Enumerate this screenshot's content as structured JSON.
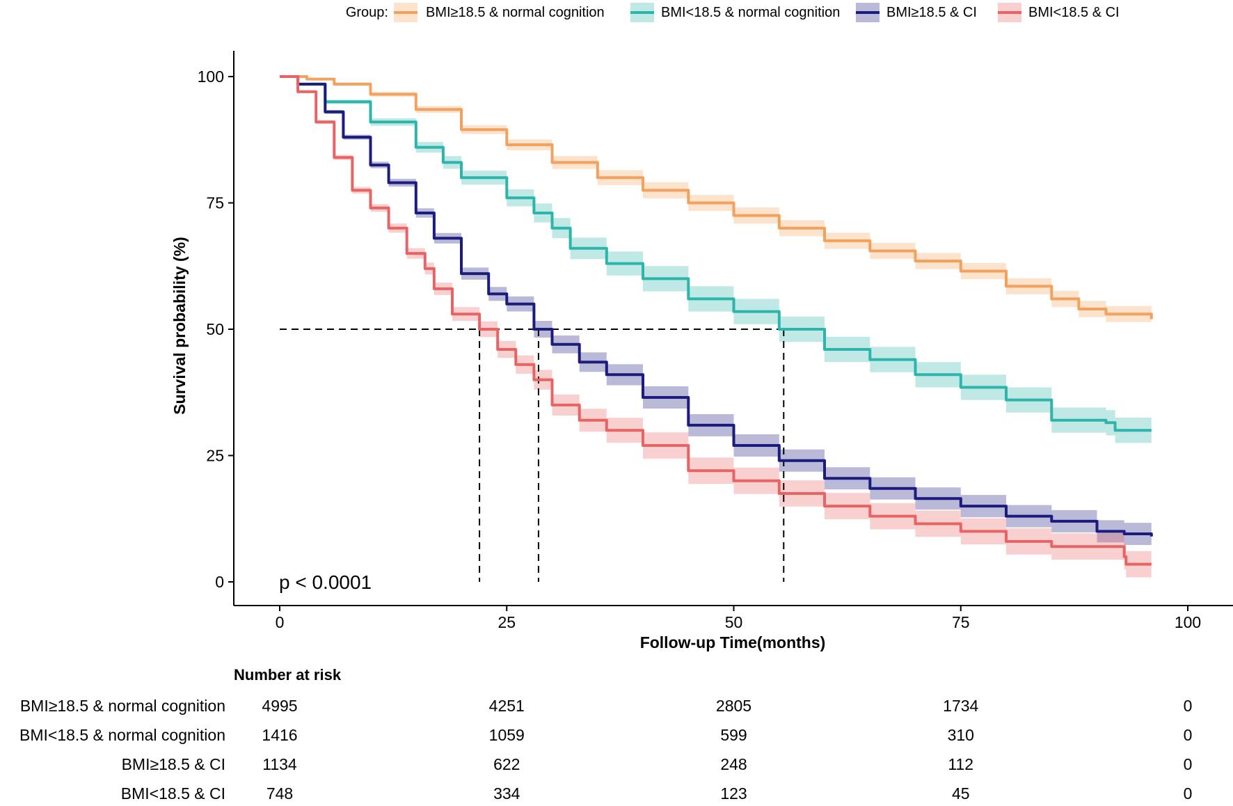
{
  "chart_data": {
    "type": "line",
    "subtype": "kaplan-meier",
    "xlabel": "Follow-up Time(months)",
    "ylabel": "Survival probability (%)",
    "xlim": [
      0,
      100
    ],
    "ylim": [
      0,
      100
    ],
    "x_ticks": [
      0,
      25,
      50,
      75,
      100
    ],
    "y_ticks": [
      0,
      25,
      50,
      75,
      100
    ],
    "x_tick_labels": [
      "0",
      "25",
      "50",
      "75",
      "100"
    ],
    "y_tick_labels": [
      "0",
      "25",
      "50",
      "75",
      "100"
    ],
    "legend_title": "Group:",
    "legend_position": "top",
    "annotation": "p < 0.0001",
    "median_line": {
      "y": 50,
      "x_medians": [
        22,
        28.5,
        55.5
      ]
    },
    "series": [
      {
        "name": "BMI≥18.5 & normal cognition",
        "color": "#F2A25C",
        "band": 1.6,
        "points": [
          [
            0,
            100
          ],
          [
            3,
            99.5
          ],
          [
            6,
            98.5
          ],
          [
            10,
            96.5
          ],
          [
            15,
            93.5
          ],
          [
            20,
            89.5
          ],
          [
            25,
            86.5
          ],
          [
            30,
            83
          ],
          [
            35,
            80
          ],
          [
            40,
            77.5
          ],
          [
            45,
            75
          ],
          [
            50,
            72.5
          ],
          [
            55,
            70
          ],
          [
            60,
            67.5
          ],
          [
            65,
            65.5
          ],
          [
            70,
            63.5
          ],
          [
            75,
            61.5
          ],
          [
            80,
            58.5
          ],
          [
            85,
            56
          ],
          [
            88,
            54
          ],
          [
            91,
            53
          ],
          [
            96,
            52
          ]
        ]
      },
      {
        "name": "BMI<18.5 & normal cognition",
        "color": "#2DB5AC",
        "band": 2.5,
        "points": [
          [
            0,
            100
          ],
          [
            2,
            98.5
          ],
          [
            5,
            95
          ],
          [
            10,
            91
          ],
          [
            15,
            86
          ],
          [
            18,
            83
          ],
          [
            20,
            80
          ],
          [
            25,
            76
          ],
          [
            28,
            73
          ],
          [
            30,
            70
          ],
          [
            32,
            66
          ],
          [
            36,
            63
          ],
          [
            40,
            60
          ],
          [
            45,
            56
          ],
          [
            50,
            53.5
          ],
          [
            55,
            50
          ],
          [
            60,
            46
          ],
          [
            65,
            44
          ],
          [
            70,
            41
          ],
          [
            75,
            38.5
          ],
          [
            80,
            36
          ],
          [
            85,
            32
          ],
          [
            88,
            32
          ],
          [
            91,
            31.5
          ],
          [
            92,
            30
          ],
          [
            96,
            30
          ]
        ]
      },
      {
        "name": "BMI≥18.5 & CI",
        "color": "#1C1B7E",
        "band": 2.2,
        "points": [
          [
            0,
            100
          ],
          [
            2,
            98.5
          ],
          [
            5,
            93
          ],
          [
            7,
            88
          ],
          [
            10,
            82.5
          ],
          [
            12,
            79
          ],
          [
            15,
            73
          ],
          [
            17,
            68
          ],
          [
            20,
            61
          ],
          [
            23,
            57
          ],
          [
            25,
            55
          ],
          [
            28,
            50
          ],
          [
            30,
            47
          ],
          [
            33,
            43.5
          ],
          [
            36,
            41
          ],
          [
            40,
            36.5
          ],
          [
            45,
            31
          ],
          [
            50,
            27
          ],
          [
            55,
            24
          ],
          [
            60,
            20.5
          ],
          [
            65,
            18.5
          ],
          [
            70,
            16.5
          ],
          [
            75,
            15
          ],
          [
            80,
            13
          ],
          [
            85,
            12
          ],
          [
            90,
            10
          ],
          [
            93,
            9.5
          ],
          [
            96,
            9
          ]
        ]
      },
      {
        "name": "BMI<18.5 & CI",
        "color": "#E86464",
        "band": 2.6,
        "points": [
          [
            0,
            100
          ],
          [
            2,
            97
          ],
          [
            4,
            91
          ],
          [
            6,
            84
          ],
          [
            8,
            77.5
          ],
          [
            10,
            74
          ],
          [
            12,
            70
          ],
          [
            14,
            65
          ],
          [
            16,
            62
          ],
          [
            17,
            58
          ],
          [
            19,
            53
          ],
          [
            22,
            50
          ],
          [
            24,
            46
          ],
          [
            26,
            43
          ],
          [
            28,
            40
          ],
          [
            30,
            35
          ],
          [
            33,
            32
          ],
          [
            36,
            30
          ],
          [
            40,
            27
          ],
          [
            45,
            22
          ],
          [
            50,
            20
          ],
          [
            55,
            17.5
          ],
          [
            60,
            15
          ],
          [
            65,
            13
          ],
          [
            70,
            11.5
          ],
          [
            75,
            10
          ],
          [
            80,
            8
          ],
          [
            85,
            7
          ],
          [
            90,
            7
          ],
          [
            93,
            5
          ],
          [
            93.2,
            3.5
          ],
          [
            96,
            3.5
          ]
        ]
      }
    ],
    "risk_table": {
      "title": "Number at risk",
      "time_points": [
        0,
        25,
        50,
        75,
        100
      ],
      "rows": [
        {
          "label": "BMI≥18.5 & normal cognition",
          "values": [
            "4995",
            "4251",
            "2805",
            "1734",
            "0"
          ]
        },
        {
          "label": "BMI<18.5 & normal cognition",
          "values": [
            "1416",
            "1059",
            "599",
            "310",
            "0"
          ]
        },
        {
          "label": "BMI≥18.5 & CI",
          "values": [
            "1134",
            "622",
            "248",
            "112",
            "0"
          ]
        },
        {
          "label": "BMI<18.5 & CI",
          "values": [
            "748",
            "334",
            "123",
            "45",
            "0"
          ]
        }
      ]
    }
  }
}
